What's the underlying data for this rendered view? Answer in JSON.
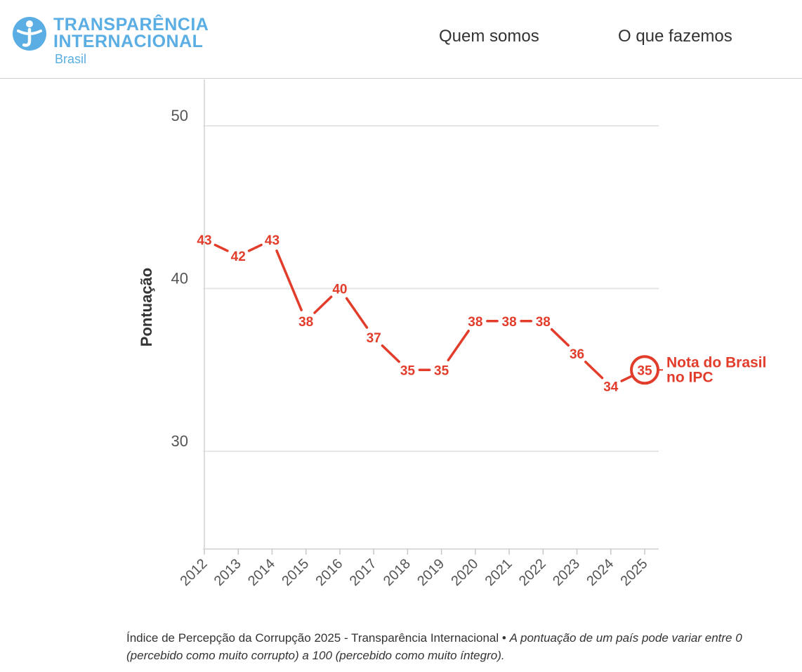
{
  "header": {
    "logo": {
      "line1": "TRANSPARÊNCIA",
      "line2": "INTERNACIONAL",
      "sub": "Brasil",
      "icon": "transparency-international-logo-icon"
    },
    "nav": [
      {
        "label": "Quem somos"
      },
      {
        "label": "O que fazemos"
      }
    ]
  },
  "colors": {
    "accent": "#e23c2b",
    "brand": "#5aaee3",
    "grid": "#e6e6e6",
    "text": "#333333"
  },
  "chart_data": {
    "type": "line",
    "title": "",
    "xlabel": "",
    "ylabel": "Pontuação",
    "x": [
      2012,
      2013,
      2014,
      2015,
      2016,
      2017,
      2018,
      2019,
      2020,
      2021,
      2022,
      2023,
      2024,
      2025
    ],
    "x_tick_labels": [
      "2012",
      "2013",
      "2014",
      "2015",
      "2016",
      "2017",
      "2018",
      "2019",
      "2020",
      "2021",
      "2022",
      "2023",
      "2024",
      "2025"
    ],
    "series": [
      {
        "name": "Brasil",
        "values": [
          43,
          42,
          43,
          38,
          40,
          37,
          35,
          35,
          38,
          38,
          38,
          36,
          34,
          35
        ]
      }
    ],
    "ylim": [
      24,
      53
    ],
    "y_ticks": [
      30,
      40,
      50
    ],
    "y_tick_labels": [
      "30",
      "40",
      "50"
    ],
    "grid": true,
    "annotation": {
      "line1": "Nota do Brasil",
      "line2": "no IPC",
      "index": 13
    }
  },
  "footnote": {
    "source": "Índice de Percepção da Corrupção 2025 - Transparência Internacional",
    "separator": " • ",
    "note": "A pontuação de um país pode variar entre 0 (percebido como muito corrupto) a 100 (percebido como muito íntegro)."
  }
}
